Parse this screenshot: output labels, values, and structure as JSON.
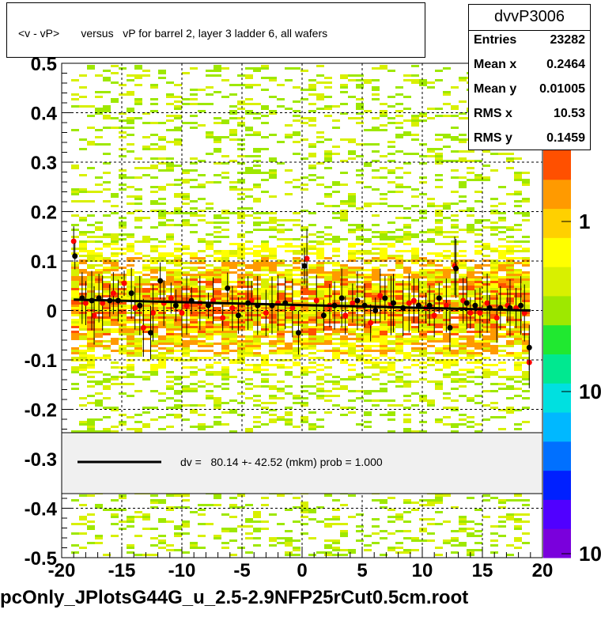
{
  "title": "<v - vP>       versus   vP for barrel 2, layer 3 ladder 6, all wafers",
  "stats": {
    "name": "dvvP3006",
    "rows": [
      {
        "key": "Entries",
        "value": "23282"
      },
      {
        "key": "Mean x",
        "value": "0.2464"
      },
      {
        "key": "Mean y",
        "value": "0.01005"
      },
      {
        "key": "RMS x",
        "value": "10.53"
      },
      {
        "key": "RMS y",
        "value": "0.1459"
      }
    ]
  },
  "legend": {
    "fit_label": "dv =   80.14 +- 42.52 (mkm) prob = 1.000"
  },
  "footer": "pcOnly_JPlotsG44G_u_2.5-2.9NFP25rCut0.5cm.root",
  "colors": {
    "fit_line": "#000000",
    "profile_black": "#000000",
    "profile_red": "#ff0000",
    "legend_bg": "#f0f0f0",
    "palette": [
      "#7a00dc",
      "#5000ff",
      "#0020ff",
      "#0070ff",
      "#00b8ff",
      "#00e0e0",
      "#00e890",
      "#20e830",
      "#9ee800",
      "#d8f000",
      "#ffff00",
      "#ffd000",
      "#ff9a00",
      "#ff5000"
    ]
  },
  "chart_data": {
    "type": "heatmap",
    "xlim": [
      -20,
      20
    ],
    "ylim": [
      -0.5,
      0.5
    ],
    "x_ticks": [
      "-20",
      "-15",
      "-10",
      "-5",
      "0",
      "5",
      "10",
      "15",
      "20"
    ],
    "y_ticks": [
      "-0.5",
      "-0.4",
      "-0.3",
      "-0.2",
      "-0.1",
      "0",
      "0.1",
      "0.2",
      "0.3",
      "0.4",
      "0.5"
    ],
    "z_axis": {
      "scale": "log",
      "tick_labels": [
        "1",
        "10",
        "10"
      ]
    },
    "grid": true,
    "fit": {
      "x": [
        -19,
        19
      ],
      "y": [
        0.022,
        0.0
      ]
    },
    "profile_black": {
      "x": [
        -18.9,
        -18.3,
        -17.5,
        -16.9,
        -16.0,
        -15.3,
        -14.2,
        -13.5,
        -12.6,
        -11.8,
        -10.5,
        -9.2,
        -7.8,
        -6.2,
        -5.3,
        -4.5,
        -3.7,
        -2.5,
        -1.4,
        -0.3,
        0.2,
        1.8,
        2.7,
        3.3,
        4.6,
        5.2,
        6.1,
        6.9,
        7.6,
        8.4,
        9.7,
        10.6,
        11.4,
        12.3,
        12.8,
        13.7,
        14.4,
        15.6,
        16.5,
        17.3,
        18.2,
        18.9
      ],
      "y": [
        0.11,
        0.025,
        0.02,
        0.025,
        0.02,
        0.02,
        0.035,
        0.01,
        -0.045,
        0.06,
        0.01,
        0.02,
        0.01,
        0.045,
        -0.01,
        0.015,
        0.01,
        0.01,
        0.015,
        -0.045,
        0.09,
        -0.01,
        0.01,
        0.025,
        0.02,
        0.01,
        0.0,
        0.025,
        0.015,
        0.005,
        0.01,
        0.01,
        0.025,
        -0.035,
        0.085,
        0.015,
        0.01,
        0.005,
        0.005,
        0.005,
        0.01,
        -0.075
      ]
    },
    "profile_red": {
      "x": [
        -19.0,
        -18.0,
        -17.3,
        -16.6,
        -15.7,
        -14.8,
        -13.9,
        -13.2,
        -12.4,
        -11.5,
        -10.9,
        -10.0,
        -9.6,
        -8.5,
        -7.4,
        -6.6,
        -5.8,
        -4.2,
        -3.0,
        -2.0,
        -0.8,
        0.4,
        1.2,
        2.3,
        3.6,
        4.2,
        5.7,
        6.5,
        7.4,
        8.9,
        9.3,
        10.3,
        11.0,
        12.0,
        12.7,
        13.4,
        14.0,
        14.8,
        15.4,
        16.2,
        17.1,
        17.8,
        18.5,
        18.9
      ],
      "y": [
        0.14,
        0.015,
        -0.01,
        0.015,
        0.035,
        0.055,
        0.005,
        -0.035,
        -0.005,
        0.015,
        0.025,
        -0.005,
        0.01,
        0.015,
        0.02,
        -0.015,
        0.005,
        0.02,
        -0.005,
        0.015,
        0.005,
        0.105,
        0.02,
        0.01,
        -0.01,
        0.015,
        -0.025,
        0.03,
        0.01,
        0.015,
        0.02,
        0.005,
        -0.01,
        0.01,
        0.09,
        0.02,
        -0.005,
        -0.005,
        0.015,
        -0.015,
        0.01,
        0.005,
        -0.005,
        -0.105
      ]
    }
  }
}
